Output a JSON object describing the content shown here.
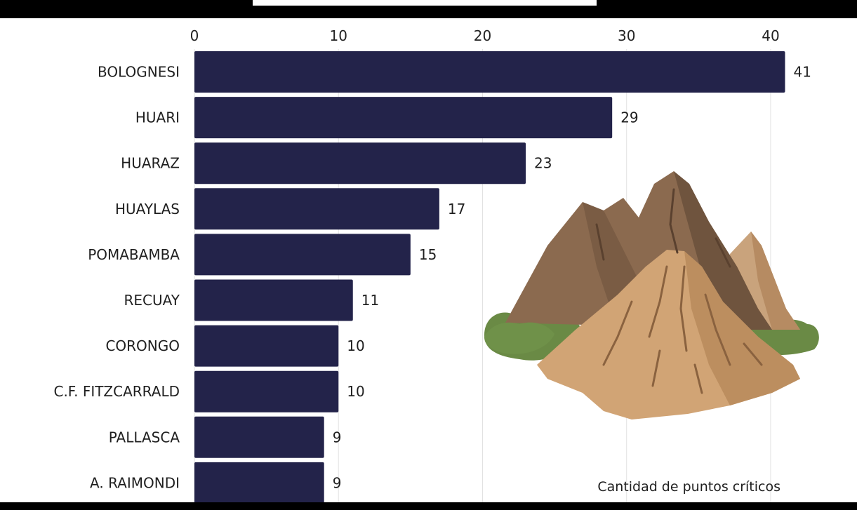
{
  "chart_data": {
    "type": "bar",
    "orientation": "horizontal",
    "categories": [
      "BOLOGNESI",
      "HUARI",
      "HUARAZ",
      "HUAYLAS",
      "POMABAMBA",
      "RECUAY",
      "CORONGO",
      "C.F. FITZCARRALD",
      "PALLASCA",
      "A. RAIMONDI"
    ],
    "values": [
      41,
      29,
      23,
      17,
      15,
      11,
      10,
      10,
      9,
      9
    ],
    "title": "",
    "xlabel": "",
    "ylabel": "",
    "xlim": [
      0,
      42
    ],
    "ticks": [
      0,
      10,
      20,
      30,
      40
    ],
    "tick_labels": [
      "0",
      "10",
      "20",
      "30",
      "40"
    ],
    "axis_position": "top",
    "grid": true,
    "annotation": "Cantidad de puntos críticos",
    "colors": {
      "bar": "#23234a",
      "grid": "#e2e2e2",
      "frame": "#000000"
    },
    "illustration": "mountain-illustration"
  }
}
